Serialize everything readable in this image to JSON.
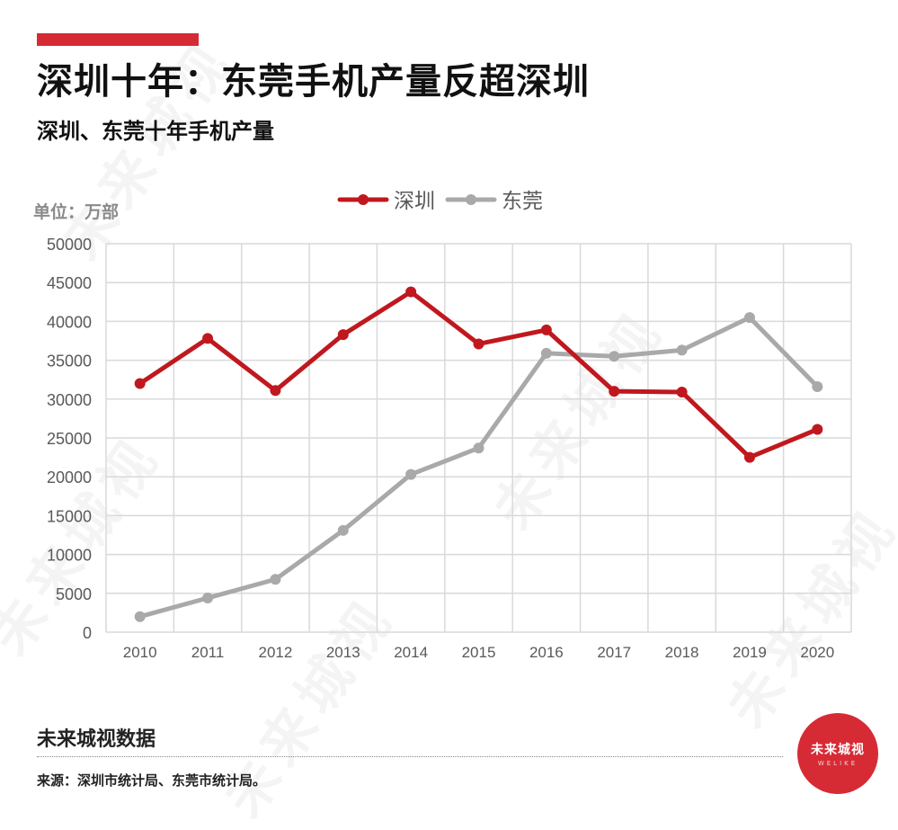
{
  "header": {
    "title": "深圳十年：东莞手机产量反超深圳",
    "subtitle": "深圳、东莞十年手机产量"
  },
  "unit_label": "单位：万部",
  "colors": {
    "accent": "#d62b35",
    "shenzhen": "#c0181e",
    "dongguan": "#a9a9a9",
    "grid": "#d9d9d9",
    "axis_text": "#595959"
  },
  "chart_data": {
    "type": "line",
    "title": "深圳、东莞十年手机产量",
    "xlabel": "",
    "ylabel": "单位：万部",
    "categories": [
      "2010",
      "2011",
      "2012",
      "2013",
      "2014",
      "2015",
      "2016",
      "2017",
      "2018",
      "2019",
      "2020"
    ],
    "ylim": [
      0,
      50000
    ],
    "yticks": [
      0,
      5000,
      10000,
      15000,
      20000,
      25000,
      30000,
      35000,
      40000,
      45000,
      50000
    ],
    "grid": true,
    "legend_position": "top-center",
    "series": [
      {
        "name": "深圳",
        "values": [
          32000,
          37800,
          31100,
          38300,
          43800,
          37100,
          38900,
          31000,
          30900,
          22500,
          26100
        ]
      },
      {
        "name": "东莞",
        "values": [
          2000,
          4400,
          6800,
          13100,
          20300,
          23700,
          35900,
          35500,
          36300,
          40500,
          31600
        ]
      }
    ]
  },
  "footer": {
    "brand": "未来城视数据",
    "source": "来源：深圳市统计局、东莞市统计局。"
  },
  "logo": {
    "text": "未来城视",
    "sub": "WELIKE"
  },
  "watermark": {
    "text": "未来城视"
  }
}
